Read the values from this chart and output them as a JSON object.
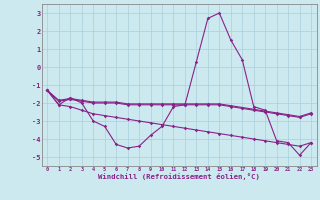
{
  "xlabel": "Windchill (Refroidissement éolien,°C)",
  "xlim": [
    -0.5,
    23.5
  ],
  "ylim": [
    -5.5,
    3.5
  ],
  "yticks": [
    3,
    2,
    1,
    0,
    -1,
    -2,
    -3,
    -4,
    -5
  ],
  "xticks": [
    0,
    1,
    2,
    3,
    4,
    5,
    6,
    7,
    8,
    9,
    10,
    11,
    12,
    13,
    14,
    15,
    16,
    17,
    18,
    19,
    20,
    21,
    22,
    23
  ],
  "background_color": "#cce9f0",
  "grid_color": "#aacfda",
  "line_color": "#882288",
  "lines": [
    {
      "x": [
        0,
        1,
        2,
        3,
        4,
        5,
        6,
        7,
        8,
        9,
        10,
        11,
        12,
        13,
        14,
        15,
        16,
        17,
        18,
        19,
        20,
        21,
        22,
        23
      ],
      "y": [
        -1.3,
        -2.1,
        -1.7,
        -2.0,
        -3.0,
        -3.3,
        -4.3,
        -4.5,
        -4.4,
        -3.8,
        -3.3,
        -2.2,
        -2.1,
        0.3,
        2.7,
        3.0,
        1.5,
        0.4,
        -2.2,
        -2.4,
        -4.1,
        -4.2,
        -4.9,
        -4.2
      ]
    },
    {
      "x": [
        0,
        1,
        2,
        3,
        4,
        5,
        6,
        7,
        8,
        9,
        10,
        11,
        12,
        13,
        14,
        15,
        16,
        17,
        18,
        19,
        20,
        21,
        22,
        23
      ],
      "y": [
        -1.3,
        -2.1,
        -2.2,
        -2.4,
        -2.6,
        -2.7,
        -2.8,
        -2.9,
        -3.0,
        -3.1,
        -3.2,
        -3.3,
        -3.4,
        -3.5,
        -3.6,
        -3.7,
        -3.8,
        -3.9,
        -4.0,
        -4.1,
        -4.2,
        -4.3,
        -4.4,
        -4.2
      ]
    },
    {
      "x": [
        0,
        1,
        2,
        3,
        4,
        5,
        6,
        7,
        8,
        9,
        10,
        11,
        12,
        13,
        14,
        15,
        16,
        17,
        18,
        19,
        20,
        21,
        22,
        23
      ],
      "y": [
        -1.3,
        -1.9,
        -1.8,
        -1.9,
        -2.0,
        -2.0,
        -2.0,
        -2.1,
        -2.1,
        -2.1,
        -2.1,
        -2.1,
        -2.1,
        -2.1,
        -2.1,
        -2.1,
        -2.2,
        -2.3,
        -2.4,
        -2.5,
        -2.6,
        -2.7,
        -2.8,
        -2.6
      ]
    },
    {
      "x": [
        0,
        1,
        2,
        3,
        4,
        5,
        6,
        7,
        8,
        9,
        10,
        11,
        12,
        13,
        14,
        15,
        16,
        17,
        18,
        19,
        20,
        21,
        22,
        23
      ],
      "y": [
        -1.3,
        -1.85,
        -1.75,
        -1.85,
        -1.95,
        -1.95,
        -1.95,
        -2.05,
        -2.05,
        -2.05,
        -2.05,
        -2.05,
        -2.05,
        -2.05,
        -2.05,
        -2.05,
        -2.15,
        -2.25,
        -2.35,
        -2.45,
        -2.55,
        -2.65,
        -2.75,
        -2.55
      ]
    }
  ]
}
